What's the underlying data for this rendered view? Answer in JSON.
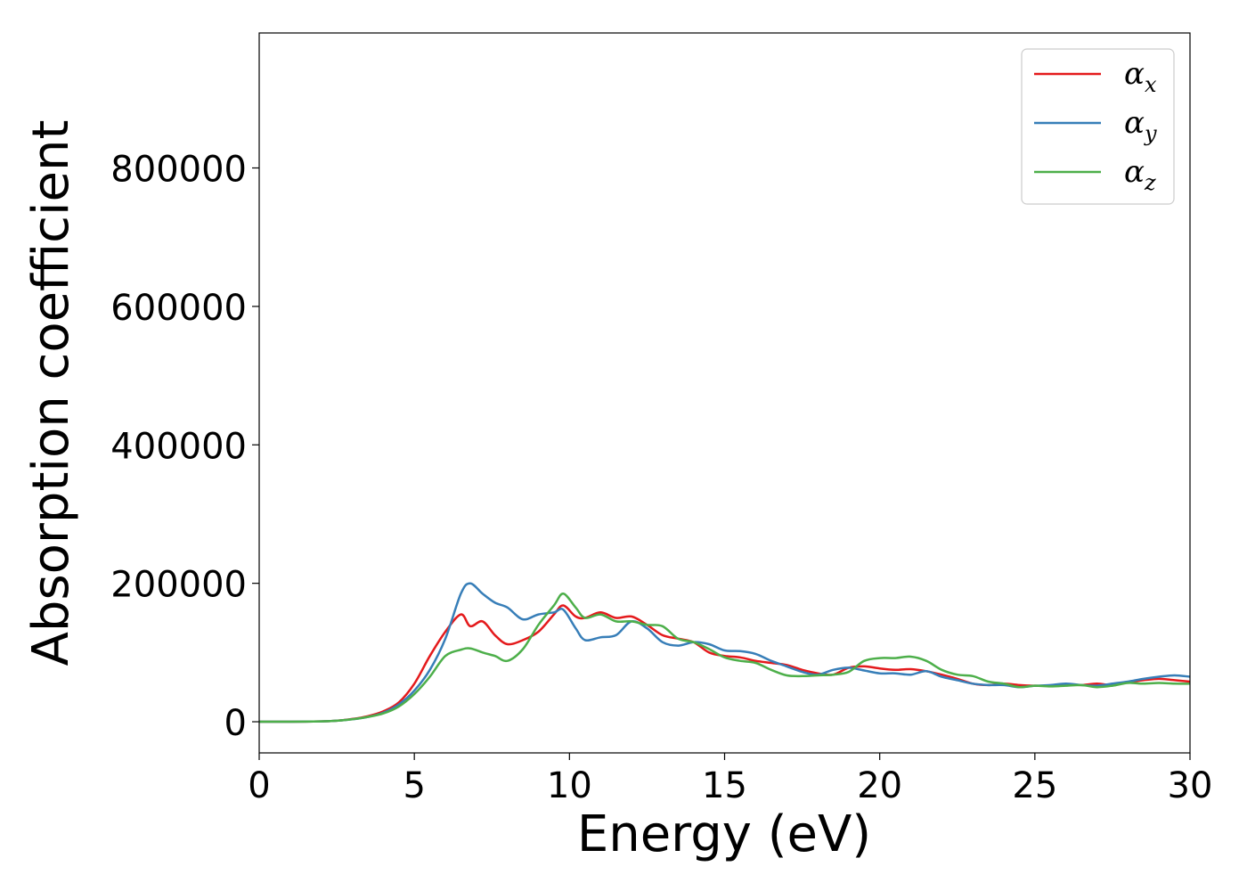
{
  "chart_data": {
    "type": "line",
    "title": "",
    "xlabel": "Energy (eV)",
    "ylabel": "Absorption coefficient",
    "xlim": [
      0,
      30
    ],
    "ylim": [
      -45000,
      995000
    ],
    "xticks": [
      0,
      5,
      10,
      15,
      20,
      25,
      30
    ],
    "xtick_labels": [
      "0",
      "5",
      "10",
      "15",
      "20",
      "25",
      "30"
    ],
    "yticks": [
      0,
      200000,
      400000,
      600000,
      800000
    ],
    "ytick_labels": [
      "0",
      "200000",
      "400000",
      "600000",
      "800000"
    ],
    "grid": false,
    "legend": "top-right",
    "series": [
      {
        "name": "α",
        "subscript": "x",
        "color": "#e41a1c",
        "x": [
          0,
          1,
          2,
          2.5,
          3,
          3.5,
          4,
          4.5,
          5,
          5.5,
          6,
          6.5,
          6.8,
          7.2,
          7.6,
          8,
          8.5,
          9,
          9.5,
          9.8,
          10.2,
          10.5,
          11,
          11.5,
          12,
          12.5,
          13,
          13.5,
          14,
          14.5,
          15,
          15.5,
          16,
          16.5,
          17,
          17.5,
          18,
          18.5,
          19,
          19.5,
          20,
          20.5,
          21,
          21.5,
          22,
          22.5,
          23,
          23.5,
          24,
          24.5,
          25,
          25.5,
          26,
          26.5,
          27,
          27.5,
          28,
          28.5,
          29,
          29.5,
          30
        ],
        "y": [
          0,
          0,
          500,
          1500,
          4000,
          8000,
          15000,
          28000,
          55000,
          95000,
          130000,
          155000,
          138000,
          145000,
          125000,
          112000,
          118000,
          130000,
          155000,
          168000,
          152000,
          150000,
          158000,
          150000,
          152000,
          140000,
          125000,
          120000,
          115000,
          100000,
          95000,
          93000,
          88000,
          85000,
          82000,
          75000,
          70000,
          68000,
          78000,
          80000,
          77000,
          75000,
          76000,
          73000,
          68000,
          62000,
          55000,
          53000,
          55000,
          53000,
          52000,
          52000,
          54000,
          53000,
          55000,
          53000,
          57000,
          60000,
          62000,
          60000,
          58000
        ]
      },
      {
        "name": "α",
        "subscript": "y",
        "color": "#377eb8",
        "x": [
          0,
          1,
          2,
          2.5,
          3,
          3.5,
          4,
          4.5,
          5,
          5.5,
          6,
          6.5,
          6.8,
          7.2,
          7.6,
          8,
          8.5,
          9,
          9.5,
          9.8,
          10.2,
          10.5,
          11,
          11.5,
          12,
          12.5,
          13,
          13.5,
          14,
          14.5,
          15,
          15.5,
          16,
          16.5,
          17,
          17.5,
          18,
          18.5,
          19,
          19.5,
          20,
          20.5,
          21,
          21.5,
          22,
          22.5,
          23,
          23.5,
          24,
          24.5,
          25,
          25.5,
          26,
          26.5,
          27,
          27.5,
          28,
          28.5,
          29,
          29.5,
          30
        ],
        "y": [
          0,
          0,
          500,
          1500,
          3500,
          7000,
          13000,
          25000,
          45000,
          75000,
          120000,
          185000,
          200000,
          185000,
          172000,
          165000,
          148000,
          155000,
          158000,
          162000,
          135000,
          118000,
          122000,
          125000,
          145000,
          135000,
          115000,
          110000,
          115000,
          112000,
          103000,
          102000,
          98000,
          88000,
          80000,
          72000,
          68000,
          75000,
          78000,
          74000,
          70000,
          70000,
          68000,
          73000,
          65000,
          60000,
          55000,
          53000,
          53000,
          50000,
          52000,
          53000,
          55000,
          53000,
          52000,
          55000,
          58000,
          62000,
          65000,
          67000,
          65000
        ]
      },
      {
        "name": "α",
        "subscript": "z",
        "color": "#4daf4a",
        "x": [
          0,
          1,
          2,
          2.5,
          3,
          3.5,
          4,
          4.5,
          5,
          5.5,
          6,
          6.5,
          6.8,
          7.2,
          7.6,
          8,
          8.5,
          9,
          9.5,
          9.8,
          10.2,
          10.5,
          11,
          11.5,
          12,
          12.5,
          13,
          13.5,
          14,
          14.5,
          15,
          15.5,
          16,
          16.5,
          17,
          17.5,
          18,
          18.5,
          19,
          19.5,
          20,
          20.5,
          21,
          21.5,
          22,
          22.5,
          23,
          23.5,
          24,
          24.5,
          25,
          25.5,
          26,
          26.5,
          27,
          27.5,
          28,
          28.5,
          29,
          29.5,
          30
        ],
        "y": [
          0,
          0,
          500,
          1500,
          3500,
          7000,
          12000,
          22000,
          40000,
          65000,
          95000,
          104000,
          106000,
          100000,
          95000,
          88000,
          105000,
          140000,
          168000,
          185000,
          165000,
          150000,
          155000,
          145000,
          145000,
          140000,
          138000,
          120000,
          115000,
          105000,
          93000,
          88000,
          85000,
          75000,
          67000,
          66000,
          67000,
          68000,
          72000,
          88000,
          92000,
          92000,
          94000,
          88000,
          75000,
          68000,
          66000,
          58000,
          55000,
          50000,
          52000,
          51000,
          52000,
          53000,
          50000,
          52000,
          56000,
          55000,
          56000,
          55000,
          55000
        ]
      }
    ]
  }
}
